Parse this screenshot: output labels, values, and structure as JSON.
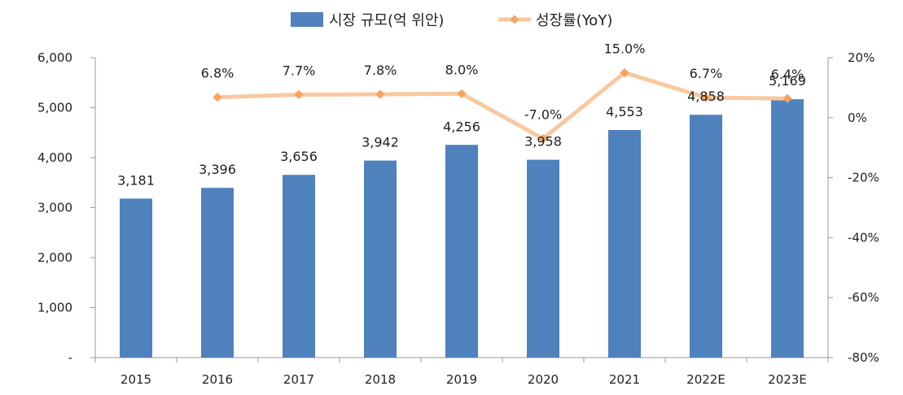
{
  "chart_data": {
    "type": "bar",
    "categories": [
      "2015",
      "2016",
      "2017",
      "2018",
      "2019",
      "2020",
      "2021",
      "2022E",
      "2023E"
    ],
    "series": [
      {
        "name": "시장 규모(억 위안)",
        "type": "bar",
        "axis": "left",
        "values": [
          3181,
          3396,
          3656,
          3942,
          4256,
          3958,
          4553,
          4858,
          5169
        ],
        "labels": [
          "3,181",
          "3,396",
          "3,656",
          "3,942",
          "4,256",
          "3,958",
          "4,553",
          "4,858",
          "5,169"
        ]
      },
      {
        "name": "성장률(YoY)",
        "type": "line",
        "axis": "right",
        "values": [
          null,
          6.8,
          7.7,
          7.8,
          8.0,
          -7.0,
          15.0,
          6.7,
          6.4
        ],
        "labels": [
          "",
          "6.8%",
          "7.7%",
          "7.8%",
          "8.0%",
          "-7.0%",
          "15.0%",
          "6.7%",
          "6.4%"
        ]
      }
    ],
    "y_left": {
      "ylim": [
        0,
        6000
      ],
      "ticks": [
        0,
        1000,
        2000,
        3000,
        4000,
        5000,
        6000
      ],
      "tick_labels": [
        "-",
        "1,000",
        "2,000",
        "3,000",
        "4,000",
        "5,000",
        "6,000"
      ]
    },
    "y_right": {
      "ylim": [
        -80,
        20
      ],
      "ticks": [
        -80,
        -60,
        -40,
        -20,
        0,
        20
      ],
      "tick_labels": [
        "-80%",
        "-60%",
        "-40%",
        "-20%",
        "0%",
        "20%"
      ]
    },
    "grid": false,
    "legend_position": "top-center",
    "colors": {
      "bar": "#4f81bd",
      "line": "#f8c9a0",
      "marker": "#f4a460"
    }
  }
}
